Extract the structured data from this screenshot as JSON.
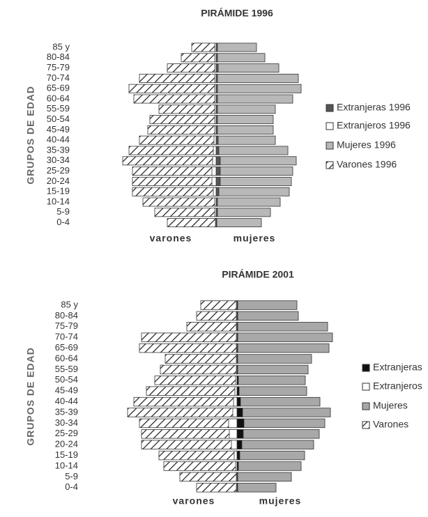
{
  "chart_data": [
    {
      "type": "pyramid",
      "title": "PIRÁMIDE 1996",
      "y_label": "GRUPOS DE EDAD",
      "left_label": "varones",
      "right_label": "mujeres",
      "categories": [
        "85 y",
        "80-84",
        "75-79",
        "70-74",
        "65-69",
        "60-64",
        "55-59",
        "50-54",
        "45-49",
        "40-44",
        "35-39",
        "30-34",
        "25-29",
        "20-24",
        "15-19",
        "10-14",
        "5-9",
        "0-4"
      ],
      "series": [
        {
          "name": "Extranjeras 1996",
          "color": "#555555",
          "side": "right",
          "values": [
            2,
            2,
            3,
            2,
            2,
            2,
            2,
            2,
            2,
            3,
            4,
            6,
            6,
            6,
            4,
            2,
            2,
            1
          ]
        },
        {
          "name": "Extranjeros 1996",
          "color": "#ffffff",
          "side": "left",
          "values": [
            2,
            2,
            2,
            2,
            2,
            2,
            2,
            2,
            2,
            3,
            4,
            5,
            6,
            6,
            4,
            2,
            2,
            1
          ]
        },
        {
          "name": "Mujeres 1996",
          "color": "#b8b8b8",
          "side": "right",
          "values": [
            58,
            70,
            90,
            118,
            122,
            110,
            85,
            82,
            82,
            85,
            103,
            115,
            110,
            108,
            105,
            92,
            78,
            65
          ]
        },
        {
          "name": "Varones 1996",
          "color": "#ffffff",
          "side": "left",
          "hatch": true,
          "values": [
            35,
            50,
            70,
            110,
            125,
            118,
            82,
            95,
            98,
            110,
            125,
            134,
            120,
            120,
            120,
            105,
            88,
            70
          ]
        }
      ]
    },
    {
      "type": "pyramid",
      "title": "PIRÁMIDE 2001",
      "y_label": "GRUPOS DE EDAD",
      "left_label": "varones",
      "right_label": "mujeres",
      "categories": [
        "85 y",
        "80-84",
        "75-79",
        "70-74",
        "65-69",
        "60-64",
        "55-59",
        "50-54",
        "45-49",
        "40-44",
        "35-39",
        "30-34",
        "25-29",
        "20-24",
        "15-19",
        "10-14",
        "5-9",
        "0-4"
      ],
      "series": [
        {
          "name": "Extranjeras",
          "color": "#111111",
          "side": "right",
          "values": [
            1,
            1,
            1,
            1,
            1,
            1,
            1,
            2,
            3,
            5,
            8,
            10,
            9,
            7,
            4,
            2,
            1,
            1
          ]
        },
        {
          "name": "Extranjeros",
          "color": "#ffffff",
          "side": "left",
          "values": [
            1,
            1,
            1,
            1,
            1,
            1,
            1,
            2,
            3,
            5,
            6,
            12,
            11,
            8,
            4,
            2,
            1,
            1
          ]
        },
        {
          "name": "Mujeres",
          "color": "#a8a8a8",
          "side": "right",
          "values": [
            86,
            88,
            130,
            137,
            132,
            107,
            102,
            98,
            100,
            119,
            134,
            126,
            118,
            110,
            97,
            92,
            78,
            56
          ]
        },
        {
          "name": "Varones",
          "color": "#ffffff",
          "side": "left",
          "hatch": true,
          "values": [
            52,
            58,
            72,
            137,
            140,
            103,
            110,
            118,
            130,
            148,
            157,
            140,
            137,
            137,
            112,
            105,
            82,
            58
          ]
        }
      ]
    }
  ]
}
